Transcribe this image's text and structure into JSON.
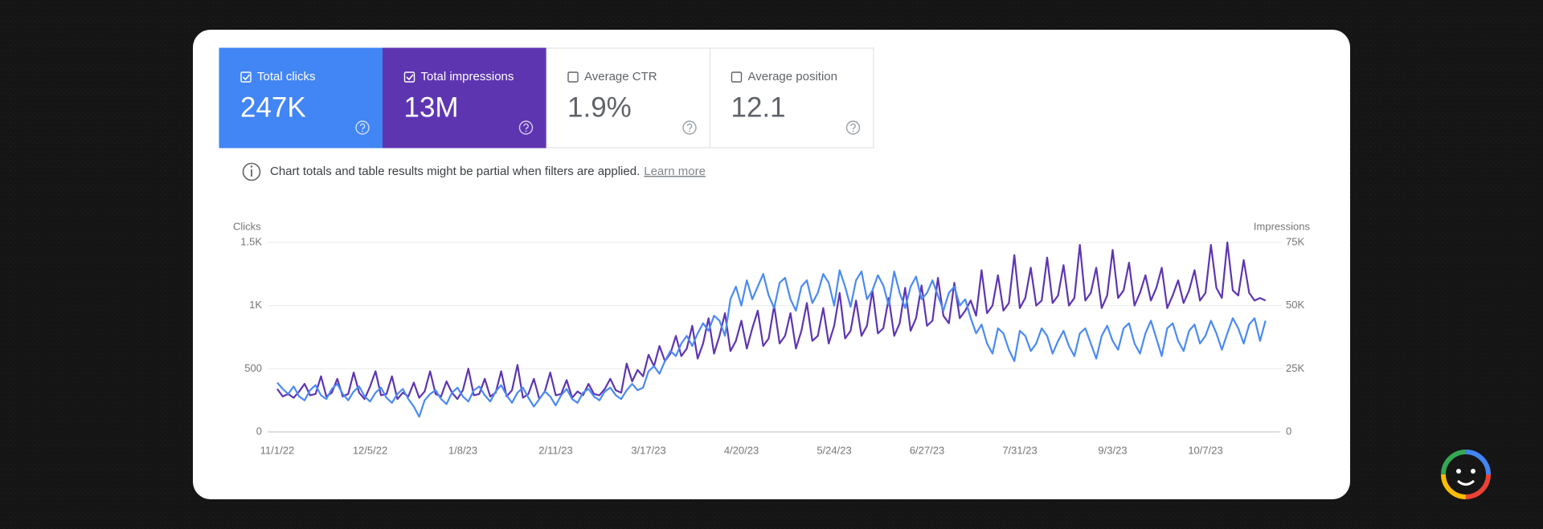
{
  "metrics": [
    {
      "label": "Total clicks",
      "value": "247K",
      "checked": true
    },
    {
      "label": "Total impressions",
      "value": "13M",
      "checked": true
    },
    {
      "label": "Average CTR",
      "value": "1.9%",
      "checked": false
    },
    {
      "label": "Average position",
      "value": "12.1",
      "checked": false
    }
  ],
  "notice": {
    "text": "Chart totals and table results might be partial when filters are applied.",
    "link": "Learn more"
  },
  "chart_data": {
    "type": "line",
    "y_label": "Clicks",
    "y2_label": "Impressions",
    "categories": [
      "11/1/22",
      null,
      null,
      null,
      null,
      null,
      null,
      null,
      null,
      null,
      null,
      null,
      null,
      null,
      null,
      null,
      null,
      "12/5/22",
      null,
      null,
      null,
      null,
      null,
      null,
      null,
      null,
      null,
      null,
      null,
      null,
      null,
      null,
      null,
      null,
      "1/8/23",
      null,
      null,
      null,
      null,
      null,
      null,
      null,
      null,
      null,
      null,
      null,
      null,
      null,
      null,
      null,
      null,
      "2/11/23",
      null,
      null,
      null,
      null,
      null,
      null,
      null,
      null,
      null,
      null,
      null,
      null,
      null,
      null,
      null,
      null,
      "3/17/23",
      null,
      null,
      null,
      null,
      null,
      null,
      null,
      null,
      null,
      null,
      null,
      null,
      null,
      null,
      null,
      null,
      "4/20/23",
      null,
      null,
      null,
      null,
      null,
      null,
      null,
      null,
      null,
      null,
      null,
      null,
      null,
      null,
      null,
      null,
      "5/24/23",
      null,
      null,
      null,
      null,
      null,
      null,
      null,
      null,
      null,
      null,
      null,
      null,
      null,
      null,
      null,
      null,
      "6/27/23",
      null,
      null,
      null,
      null,
      null,
      null,
      null,
      null,
      null,
      null,
      null,
      null,
      null,
      null,
      null,
      null,
      "7/31/23",
      null,
      null,
      null,
      null,
      null,
      null,
      null,
      null,
      null,
      null,
      null,
      null,
      null,
      null,
      null,
      null,
      "9/3/23",
      null,
      null,
      null,
      null,
      null,
      null,
      null,
      null,
      null,
      null,
      null,
      null,
      null,
      null,
      null,
      null,
      "10/7/23",
      null,
      null,
      null,
      null,
      null,
      null,
      null,
      null,
      null,
      null,
      null
    ],
    "ylim": [
      0,
      1500
    ],
    "yticks": [
      0,
      500,
      {
        "value": 1000,
        "label": "1K"
      },
      {
        "value": 1500,
        "label": "1.5K"
      }
    ],
    "y2lim": [
      0,
      75000
    ],
    "y2ticks": [
      0,
      {
        "value": 25000,
        "label": "25K"
      },
      {
        "value": 50000,
        "label": "50K"
      },
      {
        "value": 75000,
        "label": "75K"
      }
    ],
    "grid": true,
    "series": [
      {
        "name": "Total impressions",
        "color": "#5e35b1",
        "axis": "y2",
        "values": [
          17000,
          14000,
          15000,
          13500,
          16000,
          19000,
          14500,
          15000,
          22000,
          14000,
          15500,
          21000,
          14000,
          15000,
          23500,
          15500,
          13000,
          18000,
          24000,
          14500,
          15000,
          22000,
          13000,
          15500,
          14000,
          19500,
          13500,
          16000,
          24000,
          15000,
          14000,
          20000,
          15500,
          13000,
          16500,
          25000,
          14500,
          15000,
          21000,
          14000,
          15500,
          24000,
          14000,
          16500,
          26500,
          13500,
          15000,
          21000,
          13000,
          16000,
          23500,
          14500,
          15000,
          20500,
          13500,
          16000,
          14500,
          19000,
          15000,
          14500,
          17000,
          21000,
          16500,
          15500,
          27000,
          20000,
          24500,
          22000,
          30500,
          26000,
          34000,
          28000,
          31000,
          38000,
          30000,
          33000,
          42000,
          29000,
          35000,
          45000,
          31000,
          38000,
          47000,
          32000,
          36000,
          44000,
          33000,
          41000,
          48000,
          34000,
          37000,
          50000,
          35000,
          38000,
          47000,
          33000,
          40000,
          51000,
          36000,
          38000,
          49000,
          35000,
          42000,
          55000,
          37000,
          40000,
          52000,
          38000,
          42000,
          56000,
          39000,
          41000,
          53000,
          38000,
          43000,
          57000,
          40000,
          45000,
          58000,
          42000,
          44000,
          61000,
          46000,
          43000,
          59000,
          45000,
          48000,
          52000,
          46000,
          64000,
          47000,
          50000,
          62000,
          48000,
          51000,
          70000,
          49000,
          53000,
          65000,
          50000,
          52000,
          69000,
          51000,
          54000,
          66000,
          50000,
          53000,
          74000,
          52000,
          55000,
          65000,
          49000,
          54000,
          72000,
          53000,
          56000,
          67000,
          50000,
          55000,
          62000,
          52000,
          57000,
          65000,
          49000,
          54000,
          60000,
          51000,
          56000,
          64000,
          52000,
          55000,
          74000,
          57000,
          53000,
          75000,
          56000,
          54000,
          68000,
          55000,
          52000,
          53000,
          52000
        ]
      },
      {
        "name": "Total clicks",
        "color": "#4a8af4",
        "values": [
          390,
          340,
          300,
          360,
          280,
          250,
          330,
          370,
          290,
          260,
          340,
          380,
          300,
          250,
          320,
          360,
          280,
          240,
          310,
          350,
          270,
          230,
          300,
          340,
          260,
          200,
          120,
          250,
          300,
          330,
          260,
          220,
          310,
          350,
          280,
          240,
          330,
          360,
          290,
          240,
          320,
          370,
          290,
          230,
          310,
          350,
          270,
          200,
          260,
          320,
          280,
          210,
          290,
          340,
          260,
          230,
          310,
          340,
          280,
          250,
          320,
          350,
          290,
          260,
          330,
          380,
          330,
          350,
          480,
          520,
          460,
          560,
          640,
          600,
          700,
          760,
          680,
          780,
          860,
          800,
          920,
          880,
          760,
          1050,
          1150,
          1000,
          1200,
          1050,
          1150,
          1250,
          1080,
          980,
          1180,
          1220,
          1050,
          960,
          1150,
          1200,
          1020,
          1100,
          1250,
          1180,
          1000,
          1280,
          1150,
          990,
          1200,
          1270,
          1050,
          1120,
          1240,
          1160,
          1000,
          1270,
          1100,
          980,
          1150,
          1230,
          1050,
          1100,
          1200,
          1080,
          960,
          1100,
          1150,
          1000,
          1050,
          900,
          780,
          850,
          700,
          620,
          820,
          780,
          650,
          560,
          800,
          760,
          640,
          700,
          820,
          760,
          620,
          720,
          800,
          680,
          600,
          780,
          820,
          700,
          580,
          760,
          840,
          720,
          650,
          820,
          860,
          700,
          620,
          780,
          880,
          740,
          600,
          820,
          860,
          720,
          640,
          800,
          850,
          700,
          760,
          880,
          780,
          650,
          780,
          900,
          820,
          700,
          850,
          900,
          720,
          880
        ]
      }
    ]
  }
}
